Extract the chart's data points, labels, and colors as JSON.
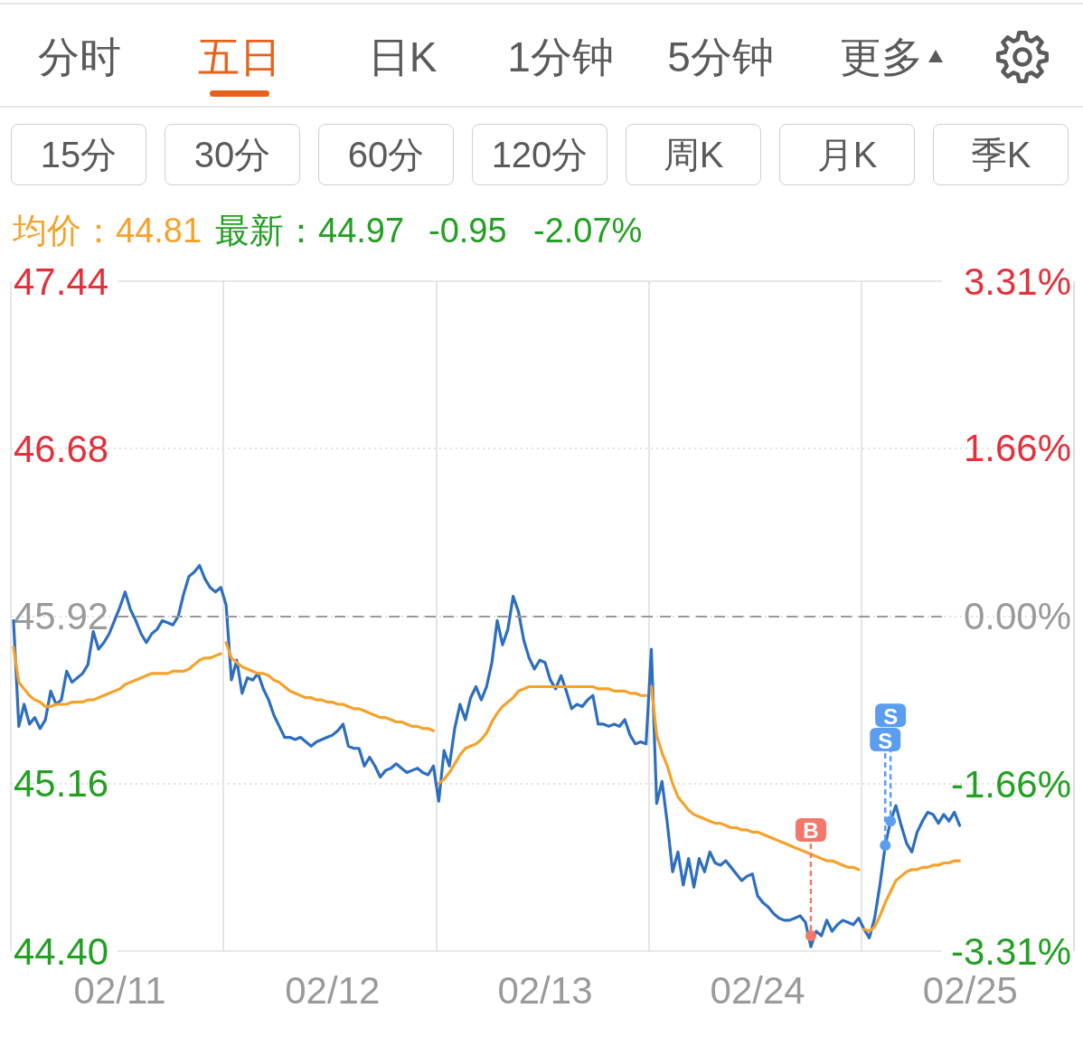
{
  "chart_data": {
    "type": "line",
    "annotations": [
      "分时",
      "五日",
      "日K",
      "1分钟",
      "5分钟",
      "更多",
      "15分",
      "30分",
      "60分",
      "120分",
      "周K",
      "月K",
      "季K",
      "均价：44.81",
      "最新：44.97",
      "-0.95",
      "-2.07%",
      {
        "text": "B",
        "y": 44.47
      },
      {
        "text": "S",
        "y": 44.88
      },
      {
        "text": "S",
        "y": 44.99
      }
    ],
    "categories": [
      null,
      null,
      null,
      null,
      null,
      null,
      null,
      null,
      null,
      null,
      null,
      null,
      null,
      null,
      null,
      null,
      null,
      null,
      null,
      null,
      "02/11",
      null,
      null,
      null,
      null,
      null,
      null,
      null,
      null,
      null,
      null,
      null,
      null,
      null,
      null,
      null,
      null,
      null,
      null,
      null,
      null,
      null,
      null,
      null,
      null,
      null,
      null,
      null,
      null,
      null,
      null,
      null,
      null,
      null,
      null,
      null,
      null,
      null,
      null,
      null,
      "02/12",
      null,
      null,
      null,
      null,
      null,
      null,
      null,
      null,
      null,
      null,
      null,
      null,
      null,
      null,
      null,
      null,
      null,
      null,
      null,
      null,
      null,
      null,
      null,
      null,
      null,
      null,
      null,
      null,
      null,
      null,
      null,
      null,
      null,
      null,
      null,
      null,
      null,
      null,
      null,
      "02/13",
      null,
      null,
      null,
      null,
      null,
      null,
      null,
      null,
      null,
      null,
      null,
      null,
      null,
      null,
      null,
      null,
      null,
      null,
      null,
      null,
      null,
      null,
      null,
      null,
      null,
      null,
      null,
      null,
      null,
      null,
      null,
      null,
      null,
      null,
      null,
      null,
      null,
      null,
      null,
      "02/24",
      null,
      null,
      null,
      null,
      null,
      null,
      null,
      null,
      null,
      null,
      null,
      null,
      null,
      null,
      null,
      null,
      null,
      null,
      null,
      null,
      null,
      null,
      null,
      null,
      null,
      null,
      null,
      null,
      null,
      null,
      null,
      null,
      null,
      null,
      null,
      null,
      null,
      null,
      null,
      "02/25",
      null,
      null,
      null,
      null,
      null,
      null,
      null,
      null,
      null,
      null,
      null,
      null,
      null,
      null,
      null,
      null,
      null,
      null,
      null
    ],
    "ylim": [
      44.4,
      47.44
    ],
    "yticks": [
      {
        "value": 44.4,
        "label": "44.40"
      },
      45.16,
      45.92,
      46.68,
      47.44
    ],
    "y2lim": [
      -3.31,
      3.31
    ],
    "y2ticks": [
      {
        "value": -3.31,
        "label": "-3.31%"
      },
      {
        "value": -1.66,
        "label": "-1.66%"
      },
      {
        "value": 0,
        "label": "0.00%"
      },
      {
        "value": 1.66,
        "label": "1.66%"
      },
      {
        "value": 3.31,
        "label": "3.31%"
      }
    ],
    "series": [
      {
        "color": "#2e6ebf",
        "values": [
          45.9,
          45.42,
          45.52,
          45.43,
          45.46,
          45.41,
          45.45,
          45.58,
          45.52,
          45.54,
          45.67,
          45.62,
          45.64,
          45.66,
          45.7,
          45.85,
          45.77,
          45.8,
          45.84,
          45.9,
          45.96,
          46.03,
          45.95,
          45.9,
          45.84,
          45.8,
          45.84,
          45.86,
          45.9,
          45.89,
          45.88,
          45.92,
          46.02,
          46.1,
          46.12,
          46.15,
          46.09,
          46.05,
          46.03,
          46.05,
          45.97,
          45.63,
          45.72,
          45.57,
          45.64,
          45.63,
          45.66,
          45.59,
          45.54,
          45.47,
          45.42,
          45.37,
          45.37,
          45.36,
          45.37,
          45.35,
          45.33,
          45.35,
          45.36,
          45.37,
          45.38,
          45.4,
          45.43,
          45.33,
          45.32,
          45.32,
          45.24,
          45.28,
          45.24,
          45.19,
          45.22,
          45.23,
          45.25,
          45.23,
          45.21,
          45.22,
          45.23,
          45.21,
          45.2,
          45.24,
          45.08,
          45.31,
          45.24,
          45.41,
          45.52,
          45.45,
          45.55,
          45.6,
          45.54,
          45.6,
          45.71,
          45.9,
          45.79,
          45.86,
          46.01,
          45.94,
          45.81,
          45.73,
          45.68,
          45.72,
          45.71,
          45.63,
          45.59,
          45.65,
          45.58,
          45.5,
          45.52,
          45.51,
          45.54,
          45.56,
          45.43,
          45.43,
          45.42,
          45.43,
          45.42,
          45.45,
          45.38,
          45.34,
          45.35,
          45.34,
          45.77,
          45.07,
          45.17,
          44.98,
          44.76,
          44.85,
          44.7,
          44.82,
          44.69,
          44.82,
          44.76,
          44.85,
          44.8,
          44.79,
          44.81,
          44.78,
          44.75,
          44.72,
          44.74,
          44.75,
          44.65,
          44.62,
          44.6,
          44.57,
          44.55,
          44.54,
          44.54,
          44.55,
          44.56,
          44.53,
          44.42,
          44.49,
          44.47,
          44.54,
          44.49,
          44.52,
          44.54,
          44.53,
          44.52,
          44.55,
          44.5,
          44.46,
          44.55,
          44.7,
          44.88,
          44.99,
          45.06,
          44.97,
          44.89,
          44.85,
          44.94,
          44.99,
          45.03,
          45.02,
          44.98,
          45.02,
          44.99,
          45.03,
          44.97,
          null,
          null,
          null,
          null,
          null,
          null,
          null,
          null,
          null,
          null,
          null,
          null,
          null,
          null,
          null,
          null,
          null,
          null,
          null,
          null,
          null
        ]
      },
      {
        "color": "#f5a22a",
        "values": [
          45.78,
          45.62,
          45.59,
          45.56,
          45.54,
          45.53,
          45.51,
          45.51,
          45.52,
          45.52,
          45.52,
          45.53,
          45.53,
          45.53,
          45.54,
          45.54,
          45.55,
          45.56,
          45.57,
          45.58,
          45.59,
          45.61,
          45.62,
          45.63,
          45.64,
          45.65,
          45.66,
          45.66,
          45.66,
          45.66,
          45.67,
          45.67,
          45.67,
          45.68,
          45.7,
          45.72,
          45.73,
          45.73,
          45.74,
          45.75,
          null,
          null,
          null,
          null,
          null,
          null,
          null,
          null,
          null,
          null,
          null,
          null,
          null,
          null,
          null,
          null,
          null,
          null,
          null,
          null,
          null,
          null,
          null,
          null,
          null,
          null,
          null,
          null,
          null,
          null,
          null,
          null,
          null,
          null,
          null,
          null,
          null,
          null,
          null,
          null,
          null,
          null,
          null,
          null,
          null,
          null,
          null,
          null,
          null,
          null,
          null,
          null,
          null,
          null,
          null,
          null,
          null,
          null,
          null,
          null,
          null,
          null,
          null,
          null,
          null,
          null,
          null,
          null,
          null,
          null,
          null,
          null,
          null,
          null,
          null,
          null,
          null,
          null,
          null,
          null,
          null,
          null,
          null,
          null,
          null,
          null,
          null,
          null,
          null,
          null,
          null,
          null,
          null,
          null,
          null,
          null,
          null,
          null,
          null,
          null,
          null,
          null,
          null,
          null,
          null,
          null,
          null,
          null,
          null,
          null,
          null,
          null,
          null,
          null,
          null,
          null,
          null,
          null,
          null,
          null,
          null,
          null,
          null,
          null,
          null,
          null,
          null,
          null,
          null,
          null,
          null,
          null,
          null,
          null,
          null,
          null,
          null,
          null,
          null,
          null,
          null,
          null,
          null,
          null,
          null,
          null,
          null,
          null,
          null,
          null,
          null,
          null,
          null,
          null,
          null,
          null,
          null,
          null,
          null,
          null
        ]
      },
      {
        "color": "#f5a22a",
        "values": [
          null,
          null,
          null,
          null,
          null,
          null,
          null,
          null,
          null,
          null,
          null,
          null,
          null,
          null,
          null,
          null,
          null,
          null,
          null,
          null,
          null,
          null,
          null,
          null,
          null,
          null,
          null,
          null,
          null,
          null,
          null,
          null,
          null,
          null,
          null,
          null,
          null,
          null,
          null,
          null,
          45.8,
          45.73,
          45.71,
          45.69,
          45.68,
          45.67,
          45.66,
          45.66,
          45.65,
          45.63,
          45.62,
          45.6,
          45.58,
          45.57,
          45.56,
          45.55,
          45.55,
          45.54,
          45.54,
          45.53,
          45.53,
          45.52,
          45.52,
          45.51,
          45.5,
          45.5,
          45.49,
          45.48,
          45.47,
          45.46,
          45.46,
          45.45,
          45.44,
          45.44,
          45.43,
          45.42,
          45.42,
          45.41,
          45.41,
          45.4,
          null,
          null,
          null,
          null,
          null,
          null,
          null,
          null,
          null,
          null,
          null,
          null,
          null,
          null,
          null,
          null,
          null,
          null,
          null,
          null,
          null,
          null,
          null,
          null,
          null,
          null,
          null,
          null,
          null,
          null,
          null,
          null,
          null,
          null,
          null,
          null,
          null,
          null,
          null,
          null,
          null,
          null,
          null,
          null,
          null,
          null,
          null,
          null,
          null,
          null,
          null,
          null,
          null,
          null,
          null,
          null,
          null,
          null,
          null,
          null,
          null,
          null,
          null,
          null,
          null,
          null,
          null,
          null,
          null,
          null,
          null,
          null,
          null,
          null,
          null,
          null,
          null,
          null,
          null,
          null,
          null,
          null,
          null,
          null,
          null,
          null,
          null,
          null,
          null,
          null,
          null,
          null,
          null,
          null,
          null,
          null,
          null,
          null,
          null,
          null,
          null,
          null,
          null,
          null,
          null,
          null,
          null,
          null,
          null,
          null,
          null,
          null,
          null,
          null,
          null,
          null,
          null,
          null,
          null,
          null
        ]
      },
      {
        "color": "#f5a22a",
        "values": [
          null,
          null,
          null,
          null,
          null,
          null,
          null,
          null,
          null,
          null,
          null,
          null,
          null,
          null,
          null,
          null,
          null,
          null,
          null,
          null,
          null,
          null,
          null,
          null,
          null,
          null,
          null,
          null,
          null,
          null,
          null,
          null,
          null,
          null,
          null,
          null,
          null,
          null,
          null,
          null,
          null,
          null,
          null,
          null,
          null,
          null,
          null,
          null,
          null,
          null,
          null,
          null,
          null,
          null,
          null,
          null,
          null,
          null,
          null,
          null,
          null,
          null,
          null,
          null,
          null,
          null,
          null,
          null,
          null,
          null,
          null,
          null,
          null,
          null,
          null,
          null,
          null,
          null,
          null,
          null,
          45.16,
          45.18,
          45.21,
          45.25,
          45.29,
          45.32,
          45.33,
          45.34,
          45.36,
          45.39,
          45.44,
          45.48,
          45.51,
          45.53,
          45.55,
          45.58,
          45.59,
          45.6,
          45.6,
          45.6,
          45.6,
          45.6,
          45.6,
          45.6,
          45.6,
          45.6,
          45.6,
          45.6,
          45.6,
          45.6,
          45.59,
          45.59,
          45.59,
          45.58,
          45.58,
          45.58,
          45.57,
          45.57,
          45.56,
          45.56,
          null,
          null,
          null,
          null,
          null,
          null,
          null,
          null,
          null,
          null,
          null,
          null,
          null,
          null,
          null,
          null,
          null,
          null,
          null,
          null,
          null,
          null,
          null,
          null,
          null,
          null,
          null,
          null,
          null,
          null,
          null,
          null,
          null,
          null,
          null,
          null,
          null,
          null,
          null,
          null,
          null,
          null,
          null,
          null,
          null,
          null,
          null,
          null,
          null,
          null,
          null,
          null,
          null,
          null,
          null,
          null,
          null,
          null,
          null,
          null,
          null,
          null,
          null,
          null,
          null,
          null,
          null,
          null,
          null,
          null,
          null,
          null,
          null,
          null,
          null,
          null,
          null,
          null,
          null,
          null
        ]
      },
      {
        "color": "#f5a22a",
        "values": [
          null,
          null,
          null,
          null,
          null,
          null,
          null,
          null,
          null,
          null,
          null,
          null,
          null,
          null,
          null,
          null,
          null,
          null,
          null,
          null,
          null,
          null,
          null,
          null,
          null,
          null,
          null,
          null,
          null,
          null,
          null,
          null,
          null,
          null,
          null,
          null,
          null,
          null,
          null,
          null,
          null,
          null,
          null,
          null,
          null,
          null,
          null,
          null,
          null,
          null,
          null,
          null,
          null,
          null,
          null,
          null,
          null,
          null,
          null,
          null,
          null,
          null,
          null,
          null,
          null,
          null,
          null,
          null,
          null,
          null,
          null,
          null,
          null,
          null,
          null,
          null,
          null,
          null,
          null,
          null,
          null,
          null,
          null,
          null,
          null,
          null,
          null,
          null,
          null,
          null,
          null,
          null,
          null,
          null,
          null,
          null,
          null,
          null,
          null,
          null,
          null,
          null,
          null,
          null,
          null,
          null,
          null,
          null,
          null,
          null,
          null,
          null,
          null,
          null,
          null,
          null,
          null,
          null,
          null,
          null,
          45.6,
          45.38,
          45.3,
          45.24,
          45.16,
          45.1,
          45.07,
          45.04,
          45.02,
          45.01,
          45.0,
          44.99,
          44.98,
          44.98,
          44.97,
          44.96,
          44.96,
          44.95,
          44.95,
          44.94,
          44.94,
          44.93,
          44.92,
          44.91,
          44.9,
          44.89,
          44.88,
          44.87,
          44.86,
          44.85,
          44.84,
          44.83,
          44.82,
          44.81,
          44.81,
          44.8,
          44.79,
          44.78,
          44.78,
          44.77,
          null,
          null,
          null,
          null,
          null,
          null,
          null,
          null,
          null,
          null,
          null,
          null,
          null,
          null,
          null,
          null,
          null,
          null,
          null,
          null,
          null,
          null,
          null,
          null,
          null,
          null,
          null,
          null,
          null,
          null,
          null,
          null,
          null,
          null,
          null,
          null,
          null,
          null,
          null,
          null
        ]
      },
      {
        "color": "#f5a22a",
        "values": [
          null,
          null,
          null,
          null,
          null,
          null,
          null,
          null,
          null,
          null,
          null,
          null,
          null,
          null,
          null,
          null,
          null,
          null,
          null,
          null,
          null,
          null,
          null,
          null,
          null,
          null,
          null,
          null,
          null,
          null,
          null,
          null,
          null,
          null,
          null,
          null,
          null,
          null,
          null,
          null,
          null,
          null,
          null,
          null,
          null,
          null,
          null,
          null,
          null,
          null,
          null,
          null,
          null,
          null,
          null,
          null,
          null,
          null,
          null,
          null,
          null,
          null,
          null,
          null,
          null,
          null,
          null,
          null,
          null,
          null,
          null,
          null,
          null,
          null,
          null,
          null,
          null,
          null,
          null,
          null,
          null,
          null,
          null,
          null,
          null,
          null,
          null,
          null,
          null,
          null,
          null,
          null,
          null,
          null,
          null,
          null,
          null,
          null,
          null,
          null,
          null,
          null,
          null,
          null,
          null,
          null,
          null,
          null,
          null,
          null,
          null,
          null,
          null,
          null,
          null,
          null,
          null,
          null,
          null,
          null,
          null,
          null,
          null,
          null,
          null,
          null,
          null,
          null,
          null,
          null,
          null,
          null,
          null,
          null,
          null,
          null,
          null,
          null,
          null,
          null,
          null,
          null,
          null,
          null,
          null,
          null,
          null,
          null,
          null,
          null,
          null,
          null,
          null,
          null,
          null,
          null,
          null,
          null,
          null,
          null,
          44.5,
          44.49,
          44.51,
          44.56,
          44.62,
          44.67,
          44.72,
          44.74,
          44.76,
          44.77,
          44.77,
          44.78,
          44.78,
          44.79,
          44.79,
          44.8,
          44.8,
          44.81,
          44.81,
          null,
          null,
          null,
          null,
          null,
          null,
          null,
          null,
          null,
          null,
          null,
          null,
          null,
          null,
          null,
          null,
          null,
          null,
          null,
          null,
          null
        ]
      },
      {
        "type": "scatter",
        "color": "#f4786a",
        "values": [
          null,
          null,
          null,
          null,
          null,
          null,
          null,
          null,
          null,
          null,
          null,
          null,
          null,
          null,
          null,
          null,
          null,
          null,
          null,
          null,
          null,
          null,
          null,
          null,
          null,
          null,
          null,
          null,
          null,
          null,
          null,
          null,
          null,
          null,
          null,
          null,
          null,
          null,
          null,
          null,
          null,
          null,
          null,
          null,
          null,
          null,
          null,
          null,
          null,
          null,
          null,
          null,
          null,
          null,
          null,
          null,
          null,
          null,
          null,
          null,
          null,
          null,
          null,
          null,
          null,
          null,
          null,
          null,
          null,
          null,
          null,
          null,
          null,
          null,
          null,
          null,
          null,
          null,
          null,
          null,
          null,
          null,
          null,
          null,
          null,
          null,
          null,
          null,
          null,
          null,
          null,
          null,
          null,
          null,
          null,
          null,
          null,
          null,
          null,
          null,
          null,
          null,
          null,
          null,
          null,
          null,
          null,
          null,
          null,
          null,
          null,
          null,
          null,
          null,
          null,
          null,
          null,
          null,
          null,
          null,
          null,
          null,
          null,
          null,
          null,
          null,
          null,
          null,
          null,
          null,
          null,
          null,
          null,
          null,
          null,
          null,
          null,
          null,
          null,
          null,
          null,
          null,
          null,
          null,
          null,
          null,
          null,
          null,
          null,
          null,
          44.47,
          null,
          null,
          null,
          null,
          null,
          null,
          null,
          null,
          null,
          null,
          null,
          null,
          null,
          null,
          null,
          null,
          null,
          null,
          null,
          null,
          null,
          null,
          null,
          null,
          null,
          null,
          null,
          null,
          null,
          null,
          null,
          null,
          null,
          null,
          null,
          null,
          null,
          null,
          null,
          null,
          null,
          null,
          null,
          null,
          null,
          null,
          null,
          null,
          null
        ]
      },
      {
        "type": "scatter",
        "color": "#5b9ef0",
        "values": [
          null,
          null,
          null,
          null,
          null,
          null,
          null,
          null,
          null,
          null,
          null,
          null,
          null,
          null,
          null,
          null,
          null,
          null,
          null,
          null,
          null,
          null,
          null,
          null,
          null,
          null,
          null,
          null,
          null,
          null,
          null,
          null,
          null,
          null,
          null,
          null,
          null,
          null,
          null,
          null,
          null,
          null,
          null,
          null,
          null,
          null,
          null,
          null,
          null,
          null,
          null,
          null,
          null,
          null,
          null,
          null,
          null,
          null,
          null,
          null,
          null,
          null,
          null,
          null,
          null,
          null,
          null,
          null,
          null,
          null,
          null,
          null,
          null,
          null,
          null,
          null,
          null,
          null,
          null,
          null,
          null,
          null,
          null,
          null,
          null,
          null,
          null,
          null,
          null,
          null,
          null,
          null,
          null,
          null,
          null,
          null,
          null,
          null,
          null,
          null,
          null,
          null,
          null,
          null,
          null,
          null,
          null,
          null,
          null,
          null,
          null,
          null,
          null,
          null,
          null,
          null,
          null,
          null,
          null,
          null,
          null,
          null,
          null,
          null,
          null,
          null,
          null,
          null,
          null,
          null,
          null,
          null,
          null,
          null,
          null,
          null,
          null,
          null,
          null,
          null,
          null,
          null,
          null,
          null,
          null,
          null,
          null,
          null,
          null,
          null,
          null,
          null,
          null,
          null,
          null,
          null,
          null,
          null,
          null,
          null,
          null,
          null,
          null,
          null,
          44.88,
          44.99,
          null,
          null,
          null,
          null,
          null,
          null,
          null,
          null,
          null,
          null,
          null,
          null,
          null,
          null,
          null,
          null,
          null,
          null,
          null,
          null,
          null,
          null,
          null,
          null,
          null,
          null,
          null,
          null,
          null,
          null,
          null,
          null,
          null,
          null
        ]
      }
    ],
    "ref_lines": [
      {
        "axis": "y",
        "value": 45.92,
        "color": "#999999",
        "line_style": "dashed"
      }
    ],
    "grid": true,
    "line_style": "solid"
  }
}
